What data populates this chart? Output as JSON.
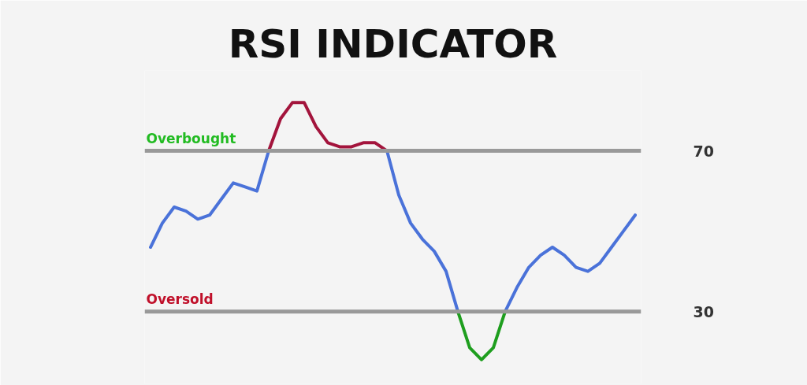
{
  "chart_data": {
    "type": "line",
    "title": "RSI INDICATOR",
    "categories": [
      null,
      null,
      null,
      null,
      null,
      null,
      null,
      null,
      null,
      null,
      null,
      null,
      null,
      null,
      null,
      null,
      null,
      null,
      null,
      null,
      null,
      null,
      null,
      null,
      null,
      null,
      null,
      null,
      null,
      null,
      null,
      null,
      null,
      null,
      null,
      null,
      null,
      null,
      null,
      null,
      null,
      null
    ],
    "series": [
      {
        "color": "#4a72d9",
        "values": [
          46,
          52,
          56,
          55,
          53,
          54,
          58,
          62,
          61,
          60,
          70,
          null,
          null,
          null,
          null,
          null,
          null,
          null,
          null,
          null,
          70,
          59,
          52,
          48,
          45,
          40,
          30,
          null,
          null,
          null,
          30,
          36,
          41,
          44,
          46,
          44,
          41,
          40,
          42,
          46,
          50,
          54
        ]
      },
      {
        "color": "#a3143c",
        "values": [
          null,
          null,
          null,
          null,
          null,
          null,
          null,
          null,
          null,
          null,
          70,
          78,
          82,
          82,
          76,
          72,
          71,
          71,
          72,
          72,
          70,
          null,
          null,
          null,
          null,
          null,
          null,
          null,
          null,
          null,
          null,
          null,
          null,
          null,
          null,
          null,
          null,
          null,
          null,
          null,
          null,
          null
        ]
      },
      {
        "color": "#1e9e1e",
        "values": [
          null,
          null,
          null,
          null,
          null,
          null,
          null,
          null,
          null,
          null,
          null,
          null,
          null,
          null,
          null,
          null,
          null,
          null,
          null,
          null,
          null,
          null,
          null,
          null,
          null,
          null,
          30,
          21,
          18,
          21,
          30,
          null,
          null,
          null,
          null,
          null,
          null,
          null,
          null,
          null,
          null,
          null
        ]
      }
    ],
    "ylim": [
      12,
      90
    ],
    "yticks": [
      70,
      30
    ],
    "tick_labels": "y",
    "ref_lines": [
      {
        "axis": "y",
        "value": 70,
        "label": "Overbought",
        "color": "#999999"
      },
      {
        "axis": "y",
        "value": 30,
        "label": "Oversold",
        "color": "#999999"
      }
    ]
  }
}
